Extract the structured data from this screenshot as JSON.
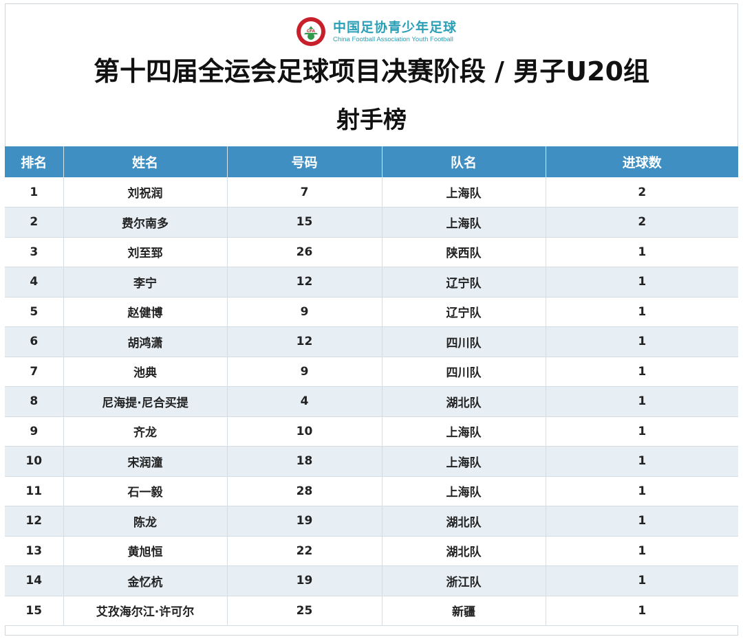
{
  "brand": {
    "logo_label": "CFA",
    "logo_ring_text": "中国足球协会",
    "name_cn": "中国足协青少年足球",
    "name_en": "China Football Association Youth Football",
    "color": "#2a9fb6"
  },
  "title": "第十四届全运会足球项目决赛阶段 / 男子U20组",
  "subtitle": "射手榜",
  "table": {
    "header_color": "#3f8fc2",
    "columns": [
      "排名",
      "姓名",
      "号码",
      "队名",
      "进球数"
    ],
    "rows": [
      {
        "rank": "1",
        "name": "刘祝润",
        "number": "7",
        "team": "上海队",
        "goals": "2"
      },
      {
        "rank": "2",
        "name": "费尔南多",
        "number": "15",
        "team": "上海队",
        "goals": "2"
      },
      {
        "rank": "3",
        "name": "刘至郅",
        "number": "26",
        "team": "陕西队",
        "goals": "1"
      },
      {
        "rank": "4",
        "name": "李宁",
        "number": "12",
        "team": "辽宁队",
        "goals": "1"
      },
      {
        "rank": "5",
        "name": "赵健博",
        "number": "9",
        "team": "辽宁队",
        "goals": "1"
      },
      {
        "rank": "6",
        "name": "胡鸿潇",
        "number": "12",
        "team": "四川队",
        "goals": "1"
      },
      {
        "rank": "7",
        "name": "池典",
        "number": "9",
        "team": "四川队",
        "goals": "1"
      },
      {
        "rank": "8",
        "name": "尼海提·尼合买提",
        "number": "4",
        "team": "湖北队",
        "goals": "1"
      },
      {
        "rank": "9",
        "name": "齐龙",
        "number": "10",
        "team": "上海队",
        "goals": "1"
      },
      {
        "rank": "10",
        "name": "宋润潼",
        "number": "18",
        "team": "上海队",
        "goals": "1"
      },
      {
        "rank": "11",
        "name": "石一毅",
        "number": "28",
        "team": "上海队",
        "goals": "1"
      },
      {
        "rank": "12",
        "name": "陈龙",
        "number": "19",
        "team": "湖北队",
        "goals": "1"
      },
      {
        "rank": "13",
        "name": "黄旭恒",
        "number": "22",
        "team": "湖北队",
        "goals": "1"
      },
      {
        "rank": "14",
        "name": "金忆杭",
        "number": "19",
        "team": "浙江队",
        "goals": "1"
      },
      {
        "rank": "15",
        "name": "艾孜海尔江·许可尔",
        "number": "25",
        "team": "新疆",
        "goals": "1"
      }
    ]
  }
}
